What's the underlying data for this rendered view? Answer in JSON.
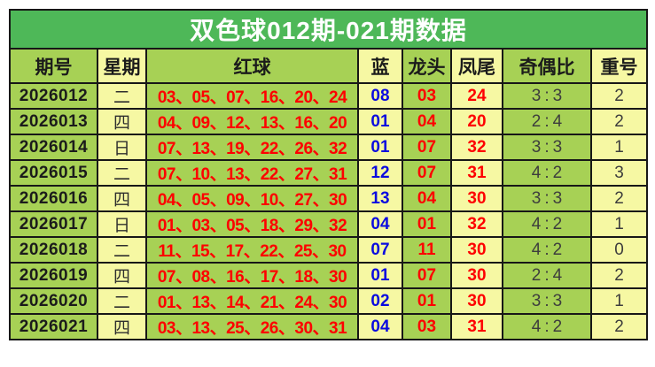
{
  "title": "双色球012期-021期数据",
  "table": {
    "columns": [
      {
        "key": "issue",
        "label": "期号"
      },
      {
        "key": "weekday",
        "label": "星期"
      },
      {
        "key": "red_balls",
        "label": "红球"
      },
      {
        "key": "blue",
        "label": "蓝"
      },
      {
        "key": "dragon_head",
        "label": "龙头"
      },
      {
        "key": "phoenix_tail",
        "label": "凤尾"
      },
      {
        "key": "odd_even_ratio",
        "label": "奇偶比"
      },
      {
        "key": "repeat_count",
        "label": "重号"
      }
    ],
    "rows": [
      {
        "issue": "2026012",
        "weekday": "二",
        "red_balls": "03、05、07、16、20、24",
        "blue": "08",
        "dragon_head": "03",
        "phoenix_tail": "24",
        "odd_even_ratio": "3:3",
        "repeat_count": "2"
      },
      {
        "issue": "2026013",
        "weekday": "四",
        "red_balls": "04、09、12、13、16、20",
        "blue": "01",
        "dragon_head": "04",
        "phoenix_tail": "20",
        "odd_even_ratio": "2:4",
        "repeat_count": "2"
      },
      {
        "issue": "2026014",
        "weekday": "日",
        "red_balls": "07、13、19、22、26、32",
        "blue": "01",
        "dragon_head": "07",
        "phoenix_tail": "32",
        "odd_even_ratio": "3:3",
        "repeat_count": "1"
      },
      {
        "issue": "2026015",
        "weekday": "二",
        "red_balls": "07、10、13、22、27、31",
        "blue": "12",
        "dragon_head": "07",
        "phoenix_tail": "31",
        "odd_even_ratio": "4:2",
        "repeat_count": "3"
      },
      {
        "issue": "2026016",
        "weekday": "四",
        "red_balls": "04、05、09、10、27、30",
        "blue": "13",
        "dragon_head": "04",
        "phoenix_tail": "30",
        "odd_even_ratio": "3:3",
        "repeat_count": "2"
      },
      {
        "issue": "2026017",
        "weekday": "日",
        "red_balls": "01、03、05、18、29、32",
        "blue": "04",
        "dragon_head": "01",
        "phoenix_tail": "32",
        "odd_even_ratio": "4:2",
        "repeat_count": "1"
      },
      {
        "issue": "2026018",
        "weekday": "二",
        "red_balls": "11、15、17、22、25、30",
        "blue": "07",
        "dragon_head": "11",
        "phoenix_tail": "30",
        "odd_even_ratio": "4:2",
        "repeat_count": "0"
      },
      {
        "issue": "2026019",
        "weekday": "四",
        "red_balls": "07、08、16、17、18、30",
        "blue": "01",
        "dragon_head": "07",
        "phoenix_tail": "30",
        "odd_even_ratio": "2:4",
        "repeat_count": "2"
      },
      {
        "issue": "2026020",
        "weekday": "二",
        "red_balls": "01、13、14、21、24、30",
        "blue": "02",
        "dragon_head": "01",
        "phoenix_tail": "30",
        "odd_even_ratio": "3:3",
        "repeat_count": "1"
      },
      {
        "issue": "2026021",
        "weekday": "四",
        "red_balls": "03、13、25、26、30、31",
        "blue": "04",
        "dragon_head": "03",
        "phoenix_tail": "31",
        "odd_even_ratio": "4:2",
        "repeat_count": "2"
      }
    ]
  },
  "chart_data": {
    "type": "table",
    "title": "双色球012期-021期数据",
    "columns": [
      "期号",
      "星期",
      "红球",
      "蓝",
      "龙头",
      "凤尾",
      "奇偶比",
      "重号"
    ],
    "rows": [
      [
        "2026012",
        "二",
        "03、05、07、16、20、24",
        "08",
        "03",
        "24",
        "3:3",
        "2"
      ],
      [
        "2026013",
        "四",
        "04、09、12、13、16、20",
        "01",
        "04",
        "20",
        "2:4",
        "2"
      ],
      [
        "2026014",
        "日",
        "07、13、19、22、26、32",
        "01",
        "07",
        "32",
        "3:3",
        "1"
      ],
      [
        "2026015",
        "二",
        "07、10、13、22、27、31",
        "12",
        "07",
        "31",
        "4:2",
        "3"
      ],
      [
        "2026016",
        "四",
        "04、05、09、10、27、30",
        "13",
        "04",
        "30",
        "3:3",
        "2"
      ],
      [
        "2026017",
        "日",
        "01、03、05、18、29、32",
        "04",
        "01",
        "32",
        "4:2",
        "1"
      ],
      [
        "2026018",
        "二",
        "11、15、17、22、25、30",
        "07",
        "11",
        "30",
        "4:2",
        "0"
      ],
      [
        "2026019",
        "四",
        "07、08、16、17、18、30",
        "01",
        "07",
        "30",
        "2:4",
        "2"
      ],
      [
        "2026020",
        "二",
        "01、13、14、21、24、30",
        "02",
        "01",
        "30",
        "3:3",
        "1"
      ],
      [
        "2026021",
        "四",
        "03、13、25、26、30、31",
        "04",
        "03",
        "31",
        "4:2",
        "2"
      ]
    ]
  },
  "colors": {
    "title_bg": "#4eb858",
    "green_cell": "#a7d155",
    "yellow_cell": "#f6f8a3",
    "red_text": "#fe0000",
    "blue_text": "#0b0bdf",
    "grid_line": "#171717",
    "dark_text": "#1b1b1b",
    "gray_text": "#3d3d3d",
    "title_text": "#ffffff",
    "page_bg": "#ffffff"
  }
}
